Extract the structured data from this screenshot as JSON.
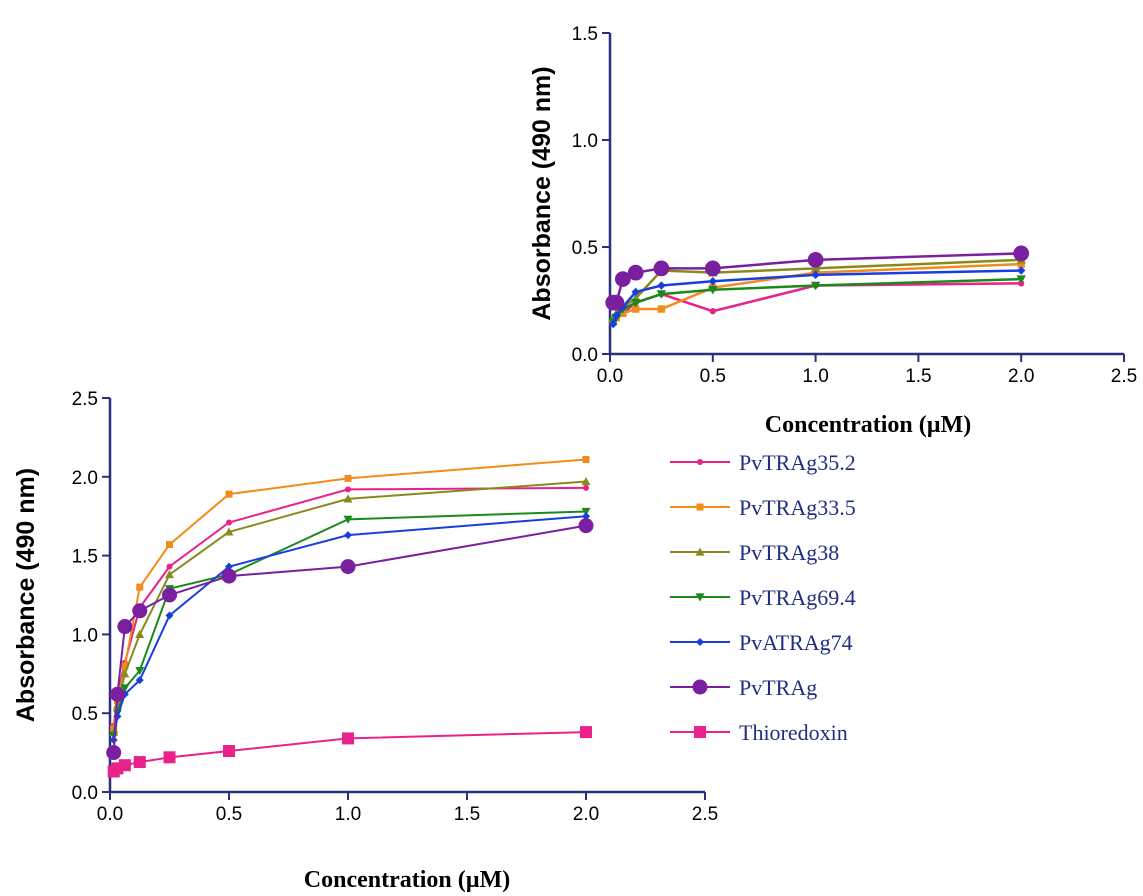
{
  "chart_data": [
    {
      "id": "main",
      "type": "line",
      "xlabel": "Concentration (µM)",
      "ylabel": "Absorbance (490 nm)",
      "xlim": [
        0,
        2.5
      ],
      "ylim": [
        0,
        2.5
      ],
      "xticks": [
        "0.0",
        "0.5",
        "1.0",
        "1.5",
        "2.0",
        "2.5"
      ],
      "yticks": [
        "0.0",
        "0.5",
        "1.0",
        "1.5",
        "2.0",
        "2.5"
      ],
      "grid": false,
      "legend_position": "right",
      "series": [
        {
          "name": "PvTRAg35.2",
          "color": "#e8228a",
          "marker": "dot",
          "x": [
            0.0156,
            0.03125,
            0.0625,
            0.125,
            0.25,
            0.5,
            1.0,
            2.0
          ],
          "y": [
            0.42,
            0.62,
            0.82,
            1.17,
            1.43,
            1.71,
            1.92,
            1.93
          ]
        },
        {
          "name": "PvTRAg33.5",
          "color": "#f08c1a",
          "marker": "square-small",
          "x": [
            0.0156,
            0.03125,
            0.0625,
            0.125,
            0.25,
            0.5,
            1.0,
            2.0
          ],
          "y": [
            0.4,
            0.58,
            0.8,
            1.3,
            1.57,
            1.89,
            1.99,
            2.11
          ]
        },
        {
          "name": "PvTRAg38",
          "color": "#8a8a1c",
          "marker": "triangle-up",
          "x": [
            0.0156,
            0.03125,
            0.0625,
            0.125,
            0.25,
            0.5,
            1.0,
            2.0
          ],
          "y": [
            0.38,
            0.55,
            0.75,
            1.0,
            1.38,
            1.65,
            1.86,
            1.97
          ]
        },
        {
          "name": "PvTRAg69.4",
          "color": "#1a8a1a",
          "marker": "triangle-down",
          "x": [
            0.0156,
            0.03125,
            0.0625,
            0.125,
            0.25,
            0.5,
            1.0,
            2.0
          ],
          "y": [
            0.36,
            0.5,
            0.66,
            0.77,
            1.29,
            1.38,
            1.73,
            1.78
          ]
        },
        {
          "name": "PvATRAg74",
          "color": "#1a3de0",
          "marker": "diamond",
          "x": [
            0.0156,
            0.03125,
            0.0625,
            0.125,
            0.25,
            0.5,
            1.0,
            2.0
          ],
          "y": [
            0.33,
            0.48,
            0.62,
            0.71,
            1.12,
            1.43,
            1.63,
            1.75
          ]
        },
        {
          "name": "PvTRAg",
          "color": "#7a1fa0",
          "marker": "circle-large",
          "x": [
            0.0156,
            0.03125,
            0.0625,
            0.125,
            0.25,
            0.5,
            1.0,
            2.0
          ],
          "y": [
            0.25,
            0.62,
            1.05,
            1.15,
            1.25,
            1.37,
            1.43,
            1.69
          ]
        },
        {
          "name": "Thioredoxin",
          "color": "#e8228a",
          "marker": "square-large",
          "x": [
            0.0156,
            0.03125,
            0.0625,
            0.125,
            0.25,
            0.5,
            1.0,
            2.0
          ],
          "y": [
            0.13,
            0.15,
            0.17,
            0.19,
            0.22,
            0.26,
            0.34,
            0.38
          ]
        }
      ]
    },
    {
      "id": "inset",
      "type": "line",
      "xlabel": "Concentration (µM)",
      "ylabel": "Absorbance (490 nm)",
      "xlim": [
        0,
        2.5
      ],
      "ylim": [
        0,
        1.5
      ],
      "xticks": [
        "0.0",
        "0.5",
        "1.0",
        "1.5",
        "2.0",
        "2.5"
      ],
      "yticks": [
        "0.0",
        "0.5",
        "1.0",
        "1.5"
      ],
      "grid": false,
      "series": [
        {
          "name": "PvTRAg35.2",
          "color": "#e8228a",
          "marker": "dot",
          "x": [
            0.0156,
            0.03125,
            0.0625,
            0.125,
            0.25,
            0.5,
            1.0,
            2.0
          ],
          "y": [
            0.16,
            0.18,
            0.19,
            0.24,
            0.28,
            0.2,
            0.32,
            0.33
          ]
        },
        {
          "name": "PvTRAg33.5",
          "color": "#f08c1a",
          "marker": "square-small",
          "x": [
            0.0156,
            0.03125,
            0.0625,
            0.125,
            0.25,
            0.5,
            1.0,
            2.0
          ],
          "y": [
            0.15,
            0.17,
            0.19,
            0.21,
            0.21,
            0.31,
            0.38,
            0.42
          ]
        },
        {
          "name": "PvTRAg38",
          "color": "#8a8a1c",
          "marker": "triangle-up",
          "x": [
            0.0156,
            0.03125,
            0.0625,
            0.125,
            0.25,
            0.5,
            1.0,
            2.0
          ],
          "y": [
            0.17,
            0.19,
            0.22,
            0.26,
            0.39,
            0.38,
            0.4,
            0.44
          ]
        },
        {
          "name": "PvTRAg69.4",
          "color": "#1a8a1a",
          "marker": "triangle-down",
          "x": [
            0.0156,
            0.03125,
            0.0625,
            0.125,
            0.25,
            0.5,
            1.0,
            2.0
          ],
          "y": [
            0.15,
            0.17,
            0.21,
            0.24,
            0.28,
            0.3,
            0.32,
            0.35
          ]
        },
        {
          "name": "PvATRAg74",
          "color": "#1a3de0",
          "marker": "diamond",
          "x": [
            0.0156,
            0.03125,
            0.0625,
            0.125,
            0.25,
            0.5,
            1.0,
            2.0
          ],
          "y": [
            0.14,
            0.18,
            0.22,
            0.29,
            0.32,
            0.34,
            0.37,
            0.39
          ]
        },
        {
          "name": "PvTRAg",
          "color": "#7a1fa0",
          "marker": "circle-large",
          "x": [
            0.0156,
            0.03125,
            0.0625,
            0.125,
            0.25,
            0.5,
            1.0,
            2.0
          ],
          "y": [
            0.24,
            0.24,
            0.35,
            0.38,
            0.4,
            0.4,
            0.44,
            0.47
          ]
        }
      ]
    }
  ]
}
